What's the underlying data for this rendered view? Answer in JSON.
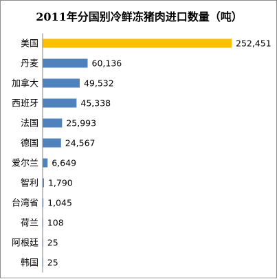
{
  "chart_data": {
    "type": "bar",
    "orientation": "horizontal",
    "title": "2011年分国别冷鲜冻猪肉进口数量（吨）",
    "categories": [
      "美国",
      "丹麦",
      "加拿大",
      "西班牙",
      "法国",
      "德国",
      "爱尔兰",
      "智利",
      "台湾省",
      "荷兰",
      "阿根廷",
      "韩国"
    ],
    "values": [
      252451,
      60136,
      49532,
      45338,
      25993,
      24567,
      6649,
      1790,
      1045,
      108,
      25,
      25
    ],
    "value_labels": [
      "252,451",
      "60,136",
      "49,532",
      "45,338",
      "25,993",
      "24,567",
      "6,649",
      "1,790",
      "1,045",
      "108",
      "25",
      "25"
    ],
    "highlight_index": 0,
    "colors": {
      "highlight": "#ffc000",
      "default": "#4f81bd",
      "axis": "#868686"
    },
    "xlim": [
      0,
      252451
    ],
    "grid": false,
    "legend": "none"
  }
}
